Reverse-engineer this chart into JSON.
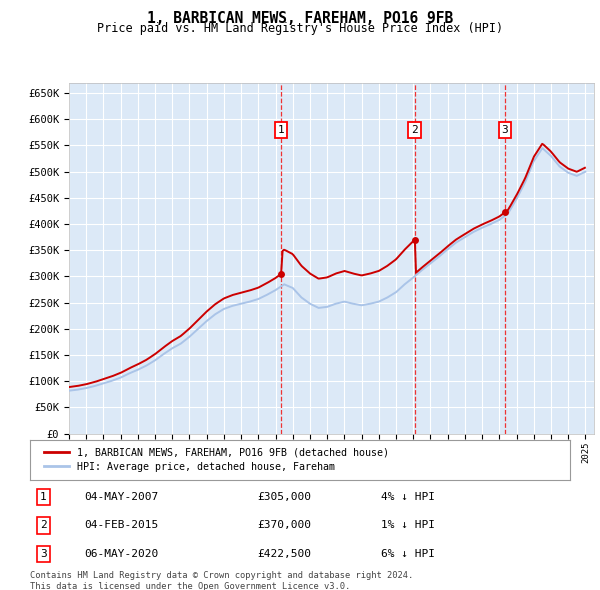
{
  "title": "1, BARBICAN MEWS, FAREHAM, PO16 9FB",
  "subtitle": "Price paid vs. HM Land Registry's House Price Index (HPI)",
  "ylim": [
    0,
    670000
  ],
  "yticks": [
    0,
    50000,
    100000,
    150000,
    200000,
    250000,
    300000,
    350000,
    400000,
    450000,
    500000,
    550000,
    600000,
    650000
  ],
  "background_color": "#ffffff",
  "plot_bg_color": "#dce9f7",
  "grid_color": "#ffffff",
  "legend_label_red": "1, BARBICAN MEWS, FAREHAM, PO16 9FB (detached house)",
  "legend_label_blue": "HPI: Average price, detached house, Fareham",
  "transactions": [
    {
      "num": 1,
      "date": "04-MAY-2007",
      "price": 305000,
      "pct": "4%",
      "year": 2007.33
    },
    {
      "num": 2,
      "date": "04-FEB-2015",
      "price": 370000,
      "pct": "1%",
      "year": 2015.08
    },
    {
      "num": 3,
      "date": "06-MAY-2020",
      "price": 422500,
      "pct": "6%",
      "year": 2020.33
    }
  ],
  "footer": "Contains HM Land Registry data © Crown copyright and database right 2024.\nThis data is licensed under the Open Government Licence v3.0.",
  "hpi_years": [
    1995.0,
    1995.5,
    1996.0,
    1996.5,
    1997.0,
    1997.5,
    1998.0,
    1998.5,
    1999.0,
    1999.5,
    2000.0,
    2000.5,
    2001.0,
    2001.5,
    2002.0,
    2002.5,
    2003.0,
    2003.5,
    2004.0,
    2004.5,
    2005.0,
    2005.5,
    2006.0,
    2006.5,
    2007.0,
    2007.5,
    2008.0,
    2008.5,
    2009.0,
    2009.5,
    2010.0,
    2010.5,
    2011.0,
    2011.5,
    2012.0,
    2012.5,
    2013.0,
    2013.5,
    2014.0,
    2014.5,
    2015.0,
    2015.5,
    2016.0,
    2016.5,
    2017.0,
    2017.5,
    2018.0,
    2018.5,
    2019.0,
    2019.5,
    2020.0,
    2020.5,
    2021.0,
    2021.5,
    2022.0,
    2022.5,
    2023.0,
    2023.5,
    2024.0,
    2024.5,
    2025.0
  ],
  "hpi_values": [
    82000,
    84000,
    87000,
    91000,
    96000,
    101000,
    107000,
    115000,
    122000,
    130000,
    140000,
    152000,
    163000,
    172000,
    185000,
    200000,
    215000,
    228000,
    238000,
    244000,
    248000,
    252000,
    257000,
    265000,
    274000,
    285000,
    278000,
    260000,
    248000,
    240000,
    242000,
    248000,
    252000,
    248000,
    245000,
    248000,
    252000,
    260000,
    270000,
    285000,
    298000,
    312000,
    325000,
    338000,
    352000,
    365000,
    375000,
    385000,
    393000,
    400000,
    408000,
    420000,
    448000,
    480000,
    520000,
    545000,
    530000,
    510000,
    498000,
    492000,
    500000
  ],
  "hpi_color": "#aac4e8",
  "price_color": "#cc0000",
  "marker_color": "#cc0000",
  "vline_color": "#ee3333"
}
